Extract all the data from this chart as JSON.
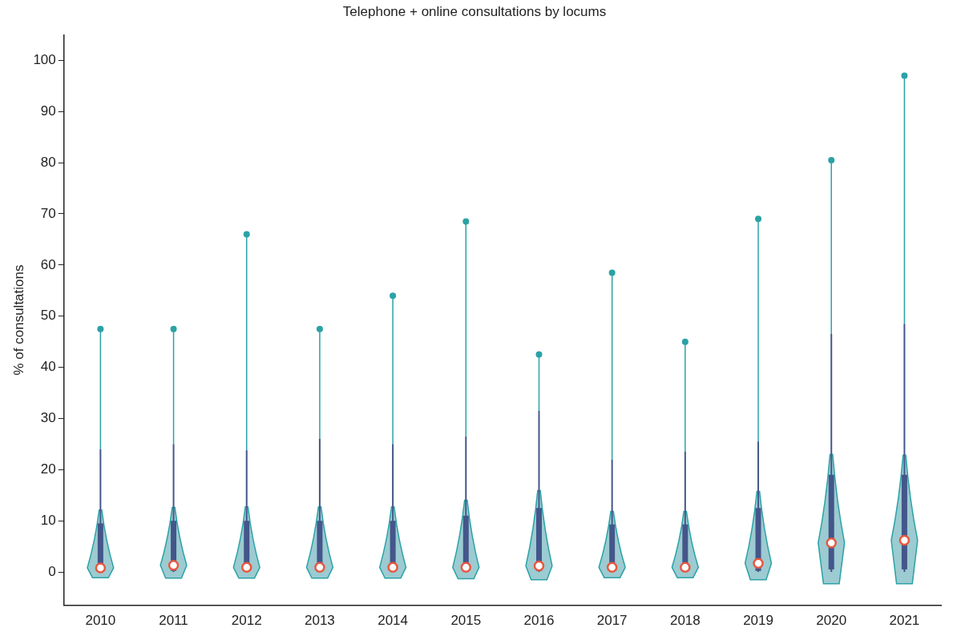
{
  "chart_data": {
    "type": "box",
    "title": "Telephone + online consultations by locums",
    "ylabel": "% of consultations",
    "categories": [
      "2010",
      "2011",
      "2012",
      "2013",
      "2014",
      "2015",
      "2016",
      "2017",
      "2018",
      "2019",
      "2020",
      "2021"
    ],
    "color": "#44568a",
    "boxes": [
      {
        "low": 0,
        "q1": 0.2,
        "median": 0.8,
        "q3": 9.5,
        "high": 24,
        "outliers": [
          47.5
        ]
      },
      {
        "low": 0,
        "q1": 0.2,
        "median": 1.3,
        "q3": 10,
        "high": 25,
        "outliers": [
          47.5
        ]
      },
      {
        "low": 0,
        "q1": 0.2,
        "median": 0.9,
        "q3": 10,
        "high": 23.8,
        "outliers": [
          66
        ]
      },
      {
        "low": 0,
        "q1": 0.2,
        "median": 0.9,
        "q3": 10,
        "high": 26,
        "outliers": [
          47.5
        ]
      },
      {
        "low": 0,
        "q1": 0.2,
        "median": 0.9,
        "q3": 10,
        "high": 25,
        "outliers": [
          54
        ]
      },
      {
        "low": 0,
        "q1": 0.2,
        "median": 0.9,
        "q3": 11,
        "high": 26.5,
        "outliers": [
          68.5
        ]
      },
      {
        "low": 0,
        "q1": 0.2,
        "median": 1.2,
        "q3": 12.5,
        "high": 31.5,
        "outliers": [
          42.5
        ]
      },
      {
        "low": 0,
        "q1": 0.2,
        "median": 0.9,
        "q3": 9.3,
        "high": 22,
        "outliers": [
          58.5
        ]
      },
      {
        "low": 0,
        "q1": 0.2,
        "median": 0.9,
        "q3": 9.3,
        "high": 23.5,
        "outliers": [
          45
        ]
      },
      {
        "low": 0,
        "q1": 0.2,
        "median": 1.7,
        "q3": 12.5,
        "high": 25.5,
        "outliers": [
          69
        ]
      },
      {
        "low": 0,
        "q1": 0.5,
        "median": 5.7,
        "q3": 19,
        "high": 46.5,
        "outliers": [
          80.5
        ]
      },
      {
        "low": 0,
        "q1": 0.5,
        "median": 6.2,
        "q3": 19,
        "high": 48.5,
        "outliers": [
          97
        ]
      }
    ],
    "ylim": [
      -6.5,
      105
    ],
    "yticks": [
      0,
      10,
      20,
      30,
      40,
      50,
      60,
      70,
      80,
      90,
      100
    ],
    "grid": false,
    "legend": false
  }
}
